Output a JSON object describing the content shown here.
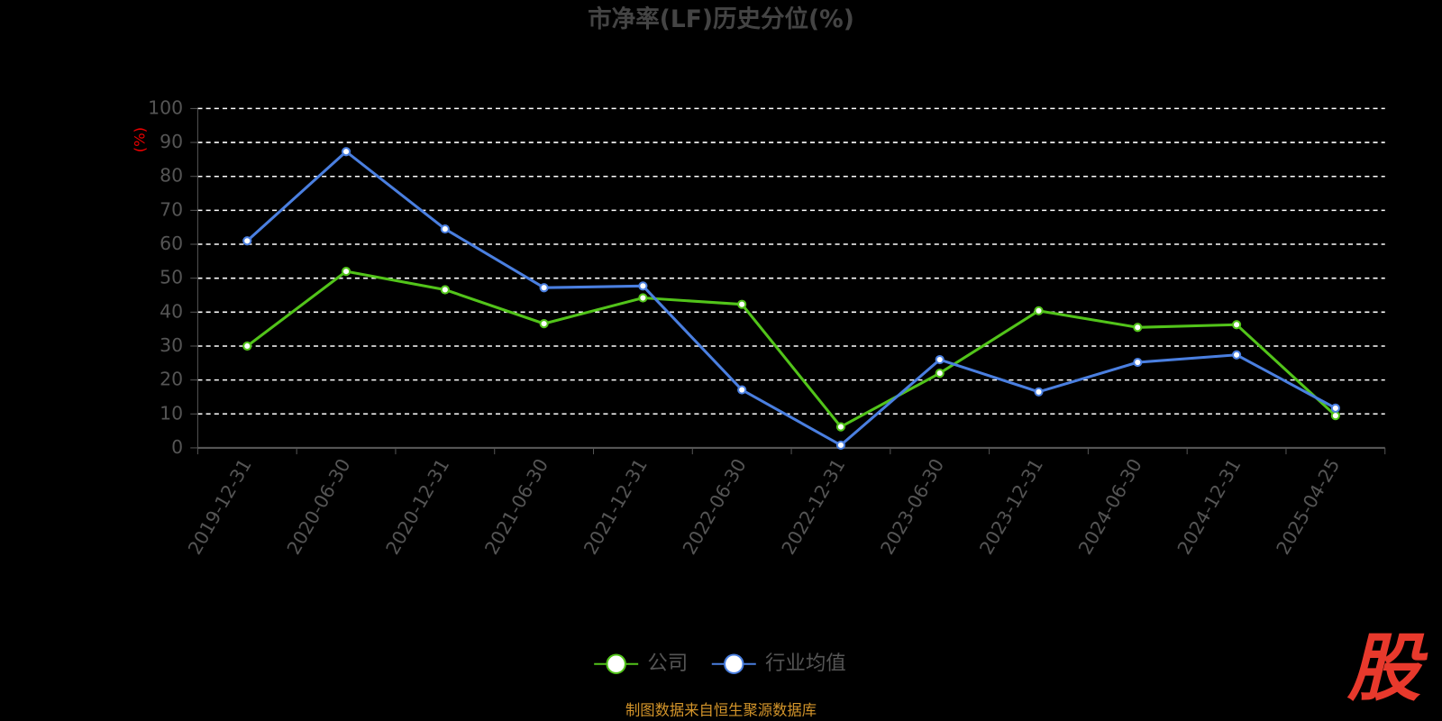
{
  "chart_data": {
    "type": "line",
    "title": "市净率(LF)历史分位(%)",
    "y_label": "(%)",
    "categories": [
      "2019-12-31",
      "2020-06-30",
      "2020-12-31",
      "2021-06-30",
      "2021-12-31",
      "2022-06-30",
      "2022-12-31",
      "2023-06-30",
      "2023-12-31",
      "2024-06-30",
      "2024-12-31",
      "2025-04-25"
    ],
    "series": [
      {
        "name": "公司",
        "color": "#52c41a",
        "values": [
          30,
          52,
          46.6,
          36.6,
          44.2,
          42.3,
          6.2,
          22,
          40.4,
          35.5,
          36.3,
          9.5
        ]
      },
      {
        "name": "行业均值",
        "color": "#4a7fe0",
        "values": [
          61,
          87.3,
          64.5,
          47.2,
          47.7,
          17.1,
          0.8,
          26,
          16.5,
          25.2,
          27.4,
          11.7
        ]
      }
    ],
    "ylim": [
      0,
      100
    ],
    "yticks": [
      0,
      10,
      20,
      30,
      40,
      50,
      60,
      70,
      80,
      90,
      100
    ],
    "grid": true,
    "legend": "bottom"
  },
  "source": "制图数据来自恒生聚源数据库",
  "logo": "股"
}
